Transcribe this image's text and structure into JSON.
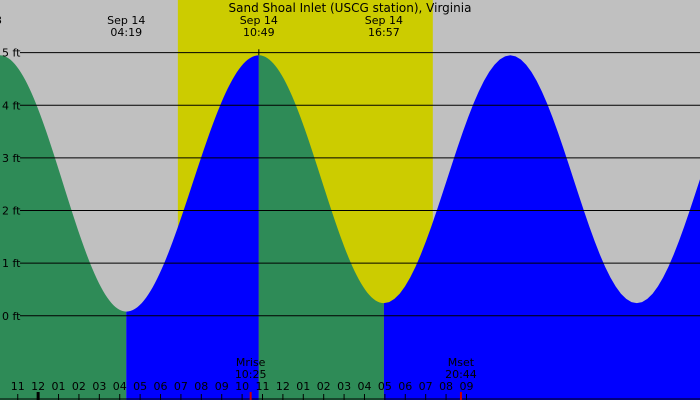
{
  "chart_data": {
    "type": "area",
    "title": "Sand Shoal Inlet (USCG station), Virginia",
    "left_edge_fragment": "3",
    "x_range_hours": [
      -0.87,
      33.45
    ],
    "y_range_ft": [
      -1.6,
      6.0
    ],
    "y_ticks": [
      {
        "value": 0,
        "label": "0 ft"
      },
      {
        "value": 1,
        "label": "1 ft"
      },
      {
        "value": 2,
        "label": "2 ft"
      },
      {
        "value": 3,
        "label": "3 ft"
      },
      {
        "value": 4,
        "label": "4 ft"
      },
      {
        "value": 5,
        "label": "5 ft"
      }
    ],
    "x_ticks": [
      {
        "value": 0,
        "label": "11"
      },
      {
        "value": 1,
        "label": "12"
      },
      {
        "value": 2,
        "label": "01"
      },
      {
        "value": 3,
        "label": "02"
      },
      {
        "value": 4,
        "label": "03"
      },
      {
        "value": 5,
        "label": "04"
      },
      {
        "value": 6,
        "label": "05"
      },
      {
        "value": 7,
        "label": "06"
      },
      {
        "value": 8,
        "label": "07"
      },
      {
        "value": 9,
        "label": "08"
      },
      {
        "value": 10,
        "label": "09"
      },
      {
        "value": 11,
        "label": "10"
      },
      {
        "value": 12,
        "label": "11"
      },
      {
        "value": 13,
        "label": "12"
      },
      {
        "value": 14,
        "label": "01"
      },
      {
        "value": 15,
        "label": "02"
      },
      {
        "value": 16,
        "label": "03"
      },
      {
        "value": 17,
        "label": "04"
      },
      {
        "value": 18,
        "label": "05"
      },
      {
        "value": 19,
        "label": "06"
      },
      {
        "value": 20,
        "label": "07"
      },
      {
        "value": 21,
        "label": "08"
      },
      {
        "value": 22,
        "label": "09"
      }
    ],
    "daylight": {
      "start": 7.85,
      "end": 20.35
    },
    "sun_events": [
      {
        "date": "Sep 14",
        "time": "04:19",
        "value": 5.32
      },
      {
        "date": "Sep 14",
        "time": "10:49",
        "value": 11.82
      },
      {
        "date": "Sep 14",
        "time": "16:57",
        "value": 17.95
      }
    ],
    "tide_extremes": [
      {
        "value": 5.32,
        "height": 0.08,
        "kind": "low"
      },
      {
        "value": 11.82,
        "height": 4.95,
        "kind": "high"
      },
      {
        "value": 17.95,
        "height": 0.24,
        "kind": "low"
      }
    ],
    "tide_boundary_heights": {
      "left_edge": 4.3,
      "right_edge": 3.6
    },
    "moon_events": [
      {
        "label": "Mrise",
        "time": "10:25",
        "value": 11.42
      },
      {
        "label": "Mset",
        "time": "20:44",
        "value": 21.73
      }
    ],
    "colors": {
      "background": "#c0c0c0",
      "daylight": "#cccc00",
      "rising": "#0000ff",
      "falling": "#2e8b57",
      "grid": "#000000",
      "moon_tick": "#cc0000"
    }
  }
}
